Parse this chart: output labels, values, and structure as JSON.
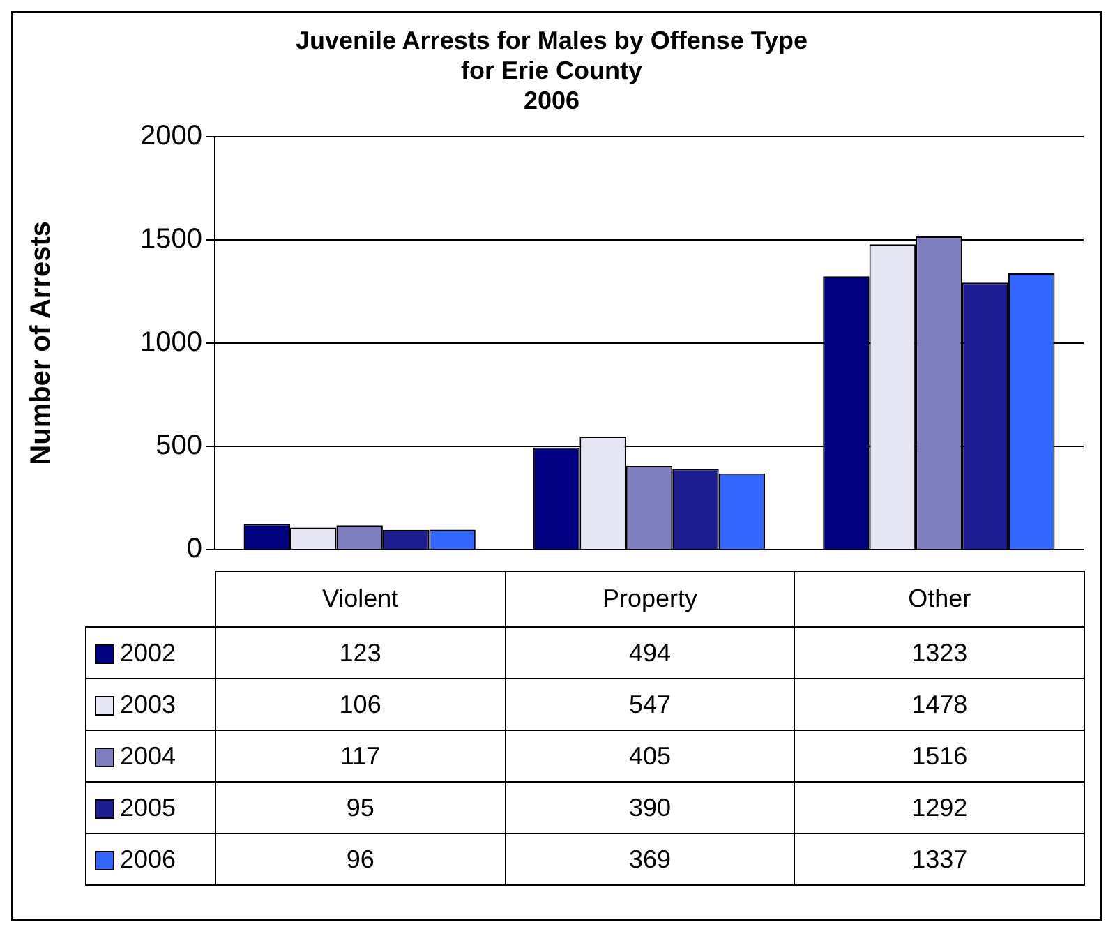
{
  "chart_data": {
    "type": "bar",
    "title": [
      "Juvenile Arrests for Males by Offense Type",
      "for Erie County",
      "2006"
    ],
    "ylabel": "Number of Arrests",
    "categories": [
      "Violent",
      "Property",
      "Other"
    ],
    "series": [
      {
        "name": "2002",
        "color": "#000080",
        "values": [
          123,
          494,
          1323
        ]
      },
      {
        "name": "2003",
        "color": "#e6e6f5",
        "values": [
          106,
          547,
          1478
        ]
      },
      {
        "name": "2004",
        "color": "#7f7fbf",
        "values": [
          117,
          405,
          1516
        ]
      },
      {
        "name": "2005",
        "color": "#1c1c8f",
        "values": [
          95,
          390,
          1292
        ]
      },
      {
        "name": "2006",
        "color": "#3366ff",
        "values": [
          96,
          369,
          1337
        ]
      }
    ],
    "ylim": [
      0,
      2000
    ],
    "yticks": [
      0,
      500,
      1000,
      1500,
      2000
    ],
    "grid": "y",
    "legend": "bottom",
    "data_labels": true
  }
}
